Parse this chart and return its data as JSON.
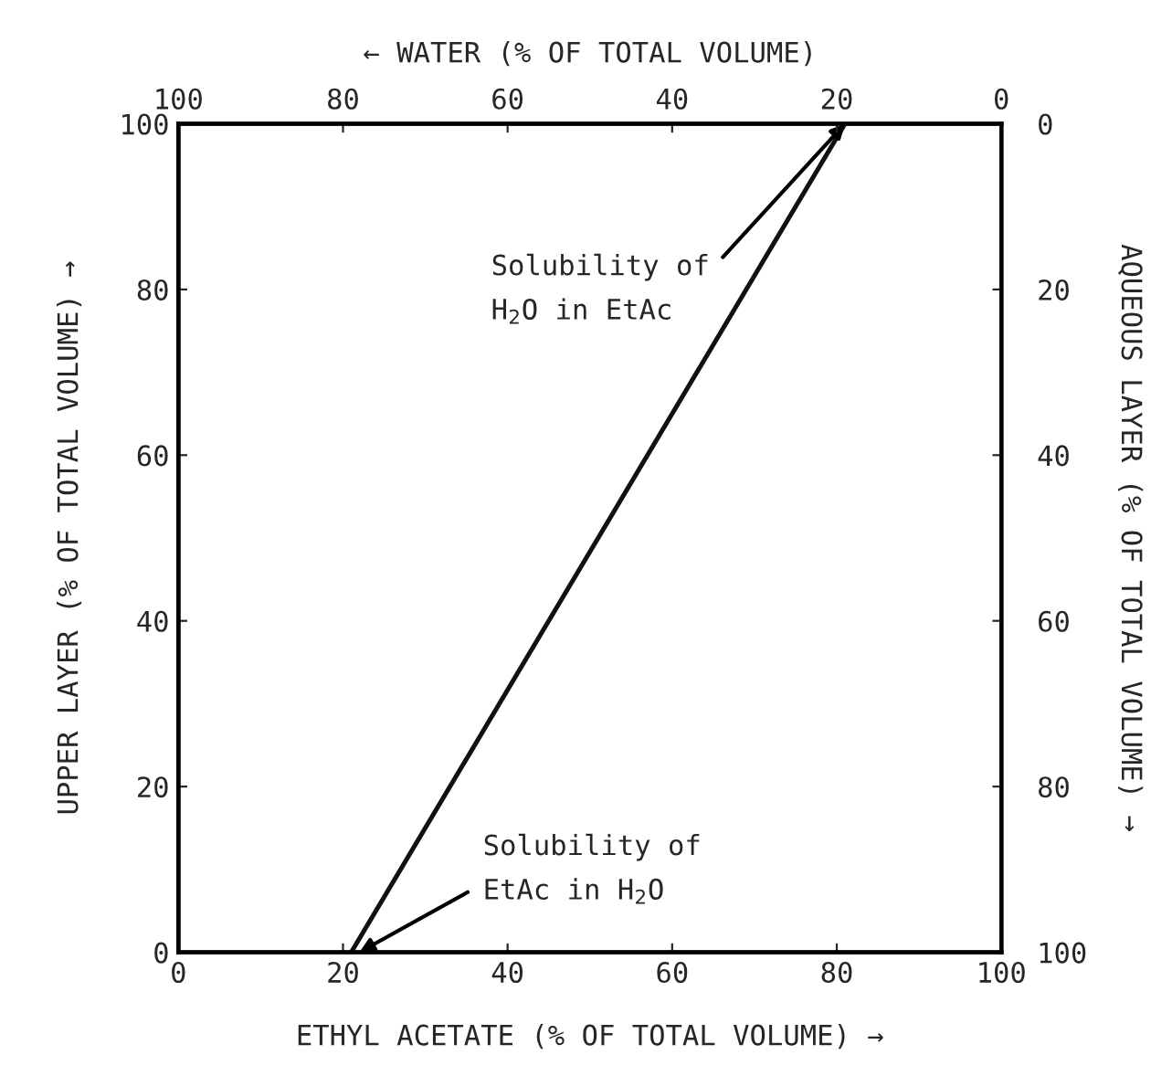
{
  "chart_data": {
    "type": "line",
    "xlabel": "ETHYL ACETATE (% OF TOTAL VOLUME) →",
    "ylabel": "UPPER LAYER (% OF TOTAL VOLUME) →",
    "x2label": "← WATER (% OF TOTAL VOLUME)",
    "y2label": "AQUEOUS LAYER (% OF TOTAL VOLUME) →",
    "x": [
      21,
      81
    ],
    "series": [
      {
        "color": "#111111",
        "values": [
          0,
          100
        ]
      }
    ],
    "xlim": [
      0,
      100
    ],
    "xticks": [
      0,
      20,
      40,
      60,
      80,
      100
    ],
    "ylim": [
      0,
      100
    ],
    "yticks": [
      0,
      20,
      40,
      60,
      80,
      100
    ],
    "x2lim": [
      100,
      0
    ],
    "x2ticks": [
      100,
      80,
      60,
      40,
      20,
      0
    ],
    "y2lim": [
      100,
      0
    ],
    "y2ticks": [
      0,
      20,
      40,
      60,
      80,
      100
    ],
    "annotations": [
      {
        "text": "Solubility of\nH$_{2}$O in EtAc",
        "x": 81,
        "y": 100
      },
      {
        "text": "Solubility of\nEtAc in H$_{2}$O",
        "x": 22,
        "y": 0
      }
    ],
    "grid": false,
    "legend": false,
    "marker": "none",
    "line_style": "solid"
  }
}
